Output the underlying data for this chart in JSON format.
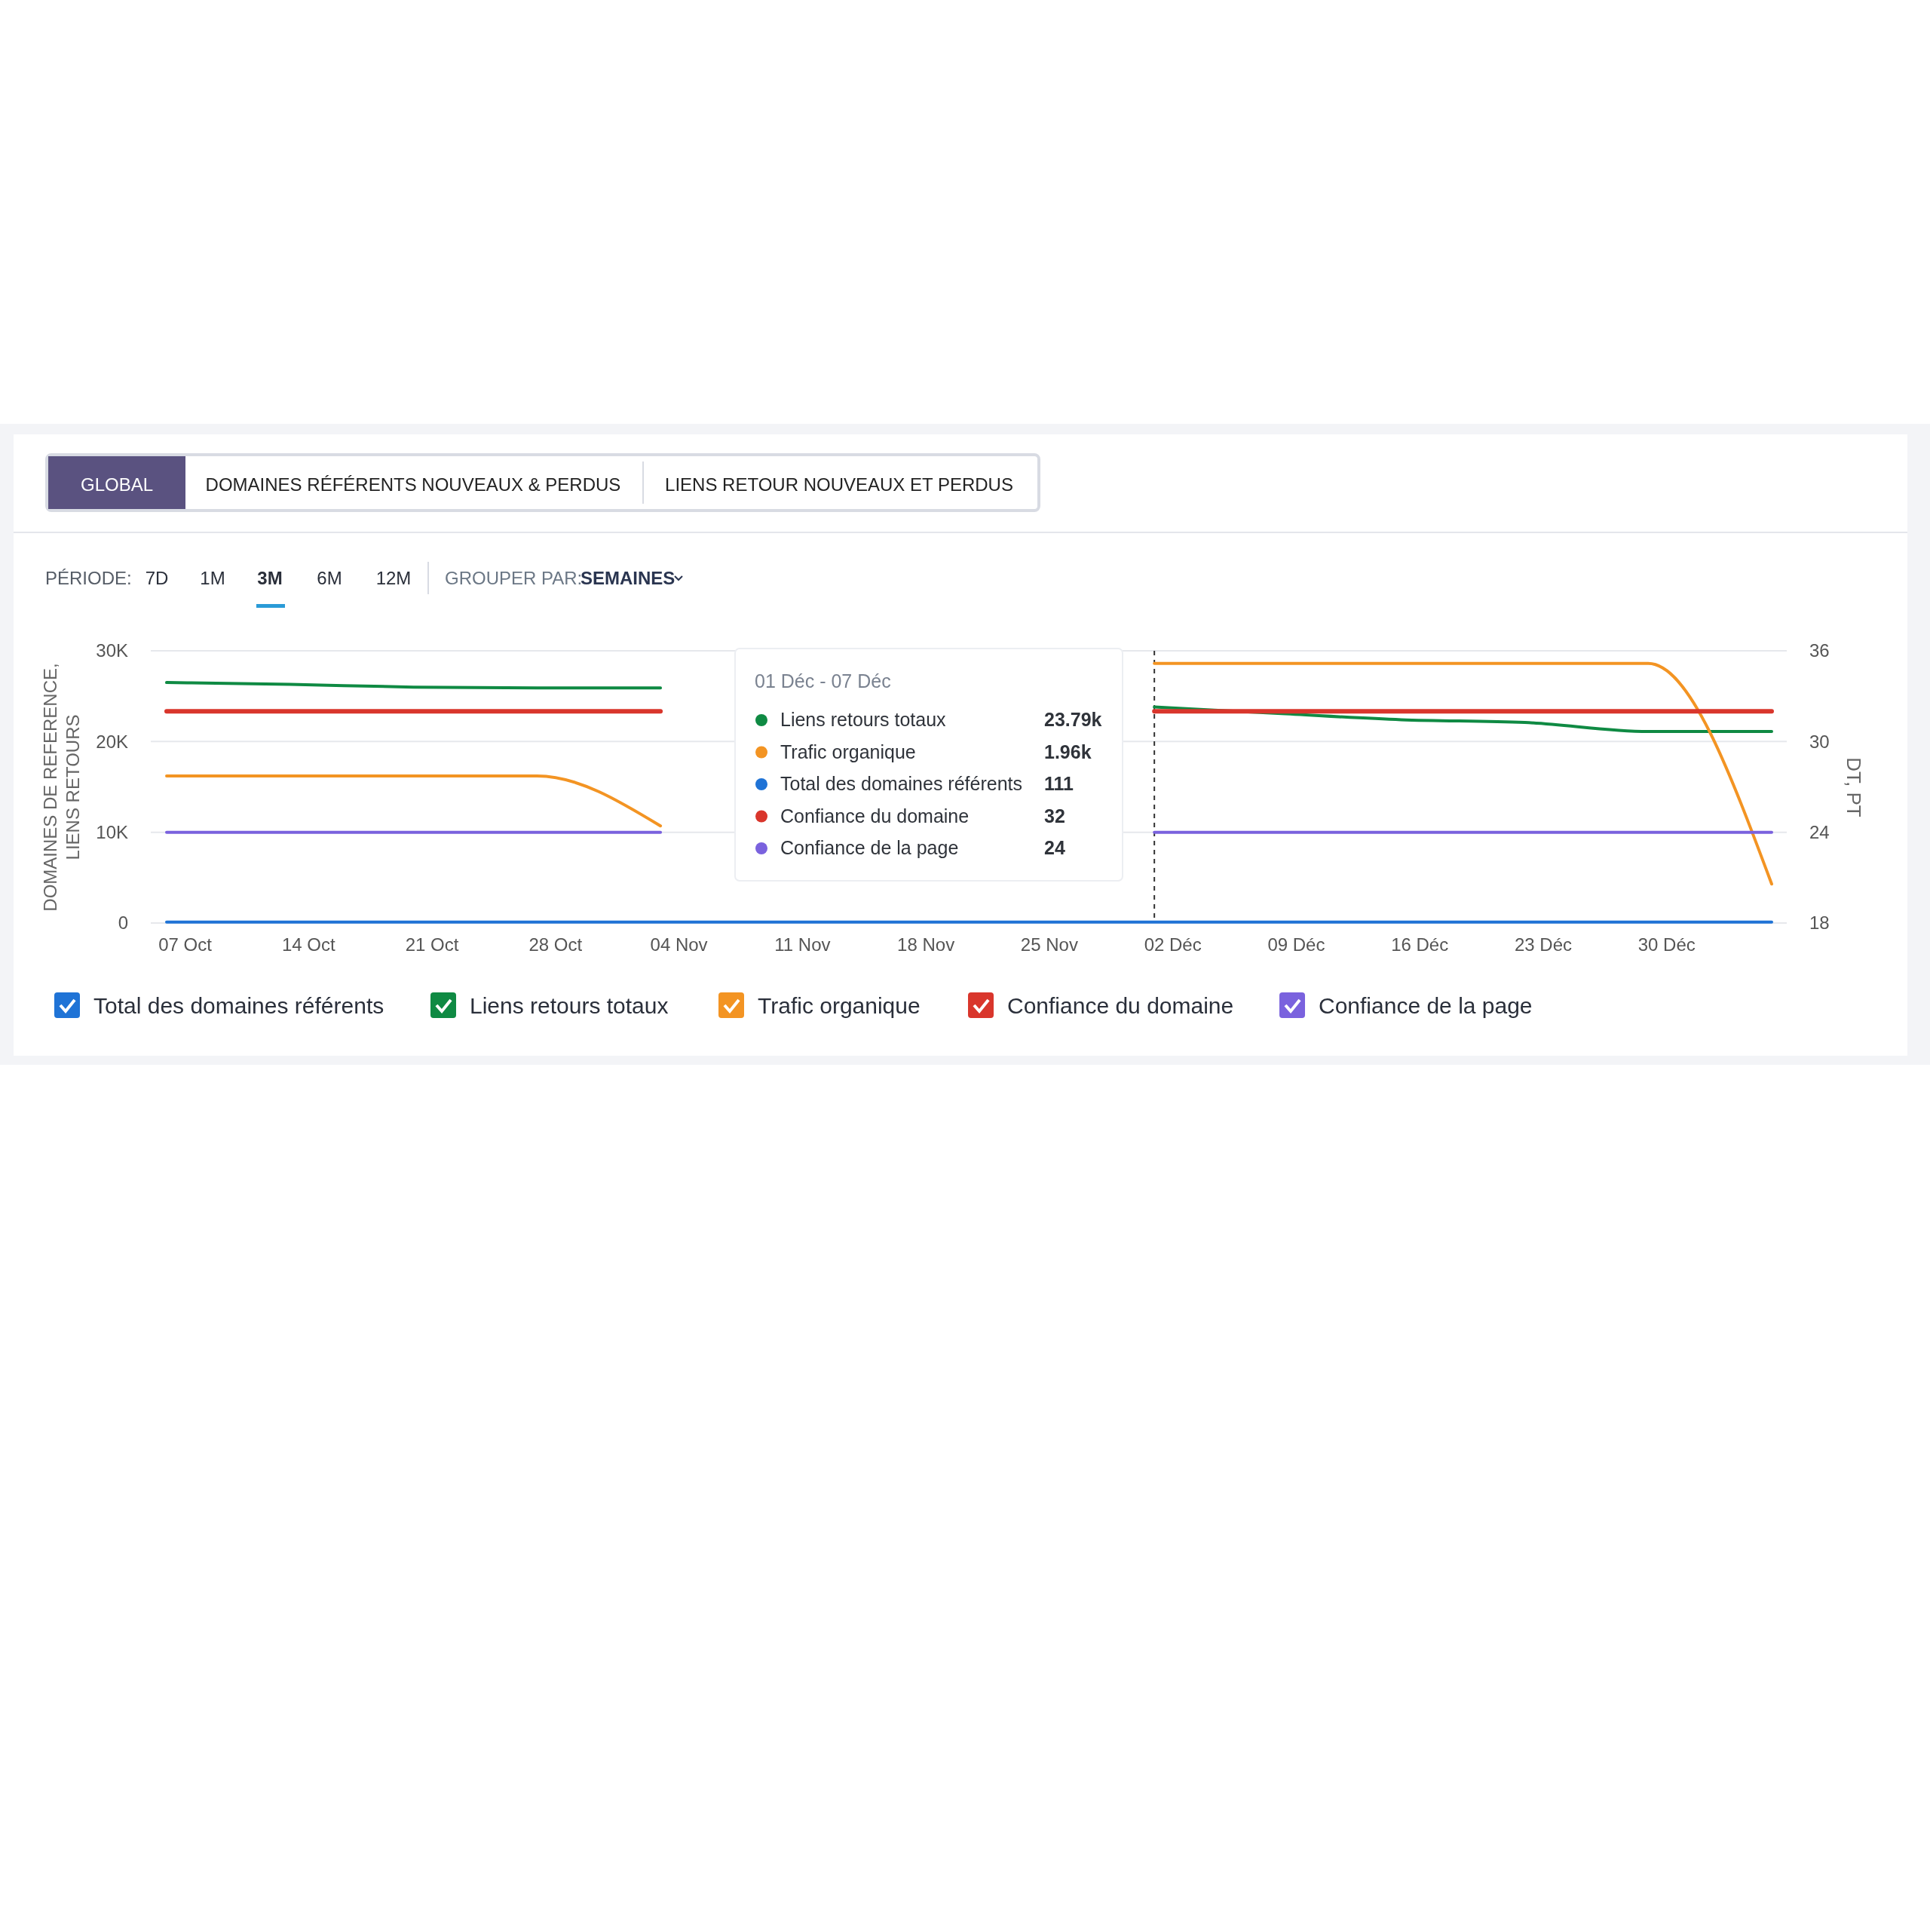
{
  "chart_data": {
    "type": "line",
    "categories": [
      "07 Oct",
      "14 Oct",
      "21 Oct",
      "28 Oct",
      "04 Nov",
      "11 Nov",
      "18 Nov",
      "25 Nov",
      "02 Déc",
      "09 Déc",
      "16 Déc",
      "23 Déc",
      "30 Déc",
      null
    ],
    "series": [
      {
        "name": "Total des domaines référents",
        "color": "#1f73d6",
        "values": [
          100,
          100,
          100,
          100,
          100,
          100,
          100,
          100,
          100,
          100,
          100,
          100,
          100,
          100
        ]
      },
      {
        "name": "Liens retours totaux",
        "color": "#0f8a43",
        "values": [
          26500,
          26300,
          26000,
          25900,
          25900,
          null,
          null,
          null,
          23800,
          23100,
          22400,
          22100,
          21100,
          21100
        ]
      },
      {
        "name": "Trafic organique",
        "color": "#f39423",
        "values": [
          16200,
          16200,
          16200,
          16200,
          10700,
          null,
          null,
          null,
          28600,
          28600,
          28600,
          28600,
          28600,
          4300
        ]
      },
      {
        "name": "Confiance du domaine",
        "color": "#d9362c",
        "axis": "y2",
        "values": [
          32,
          32,
          32,
          32,
          32,
          null,
          null,
          null,
          32,
          32,
          32,
          32,
          32,
          32
        ]
      },
      {
        "name": "Confiance de la page",
        "color": "#7a62de",
        "axis": "y2",
        "values": [
          24,
          24,
          24,
          24,
          24,
          null,
          null,
          null,
          24,
          24,
          24,
          24,
          24,
          24
        ]
      }
    ],
    "ylim": [
      0,
      30000
    ],
    "yticks": [
      0,
      {
        "value": 10000,
        "label": "10K"
      },
      {
        "value": 20000,
        "label": "20K"
      },
      {
        "value": 30000,
        "label": "30K"
      }
    ],
    "y2lim": [
      18,
      36
    ],
    "y2ticks": [
      18,
      24,
      30,
      36
    ],
    "ylabel": "DOMAINES DE REFERENCE, LIENS RETOURS",
    "y2label": "DT, PT",
    "grid": "y",
    "legend": "bottom left",
    "marker": "none",
    "line_style": "solid",
    "ref_lines": [
      {
        "axis": "x",
        "value": "02 Déc",
        "color": "#333333",
        "line_style": "dashed"
      }
    ],
    "annotations": [
      "GLOBAL",
      "DOMAINES RÉFÉRENTS NOUVEAUX & PERDUS",
      "LIENS RETOUR NOUVEAUX ET PERDUS",
      "PÉRIODE:",
      "7D",
      "1M",
      "3M",
      "6M",
      "12M",
      "GROUPER PAR:",
      "SEMAINES",
      "01 Déc - 07 Déc",
      "Liens retours totaux",
      "23.79k",
      "Trafic organique",
      "1.96k",
      "Total des domaines référents",
      "111",
      "Confiance du domaine",
      "32",
      "Confiance de la page",
      "24"
    ]
  }
}
